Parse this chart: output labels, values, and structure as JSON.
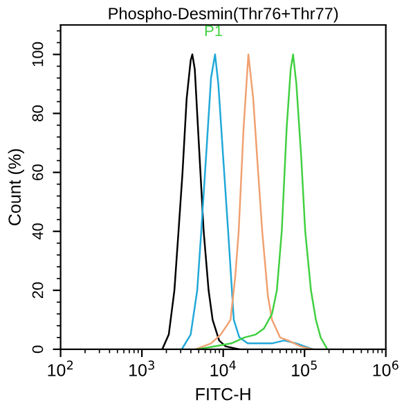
{
  "chart_data": {
    "type": "line",
    "title": "Phospho-Desmin(Thr76+Thr77)",
    "xlabel": "FITC-H",
    "ylabel": "Count (%)",
    "annotations": [
      "P1"
    ],
    "log": "x",
    "xlim": [
      100,
      1000000
    ],
    "xticks": [
      {
        "value": 100,
        "label": "10$^{2}$"
      },
      {
        "value": 1000,
        "label": "10$^{3}$"
      },
      {
        "value": 10000,
        "label": "10$^{4}$"
      },
      {
        "value": 100000,
        "label": "10$^{5}$"
      },
      {
        "value": 1000000,
        "label": "10$^{6}$"
      }
    ],
    "ylim": [
      0,
      110
    ],
    "yticks": [
      0,
      20,
      40,
      60,
      80,
      100
    ],
    "grid": false,
    "legend": false,
    "marker": "none",
    "line_style": "solid",
    "series": [
      {
        "color": "#000000",
        "x": [
          1780,
          2140,
          2510,
          2820,
          3160,
          3550,
          3980,
          4170,
          4470,
          5010,
          5750,
          6610,
          7410,
          8910,
          10700,
          15800
        ],
        "values": [
          0,
          5,
          20,
          40,
          60,
          85,
          98,
          100,
          95,
          70,
          40,
          20,
          10,
          3,
          1,
          0
        ]
      },
      {
        "color": "#20a8d8",
        "x": [
          3090,
          3980,
          4790,
          5370,
          6310,
          7080,
          7940,
          8710,
          10000,
          11500,
          13500,
          15800,
          20000,
          28200,
          39800,
          56200,
          79400,
          126000
        ],
        "values": [
          0,
          5,
          20,
          40,
          70,
          92,
          100,
          90,
          65,
          40,
          10,
          4,
          2,
          2,
          2,
          3,
          2,
          0
        ]
      },
      {
        "color": "#f0a070",
        "x": [
          4570,
          7080,
          9330,
          12300,
          14100,
          15500,
          17800,
          20400,
          23400,
          26900,
          30200,
          35500,
          39800,
          50100,
          63100,
          89100,
          126000
        ],
        "values": [
          0,
          2,
          5,
          10,
          25,
          40,
          75,
          100,
          85,
          60,
          40,
          18,
          10,
          4,
          3,
          1,
          0
        ]
      },
      {
        "color": "#40d040",
        "x": [
          4790,
          7940,
          12600,
          18200,
          25100,
          31600,
          39800,
          45700,
          52500,
          60300,
          67600,
          72400,
          79400,
          91200,
          102000,
          120000,
          138000,
          158000,
          191000
        ],
        "values": [
          0,
          1,
          2,
          4,
          5,
          7,
          12,
          20,
          40,
          75,
          95,
          100,
          90,
          65,
          40,
          20,
          10,
          4,
          0
        ]
      }
    ]
  }
}
